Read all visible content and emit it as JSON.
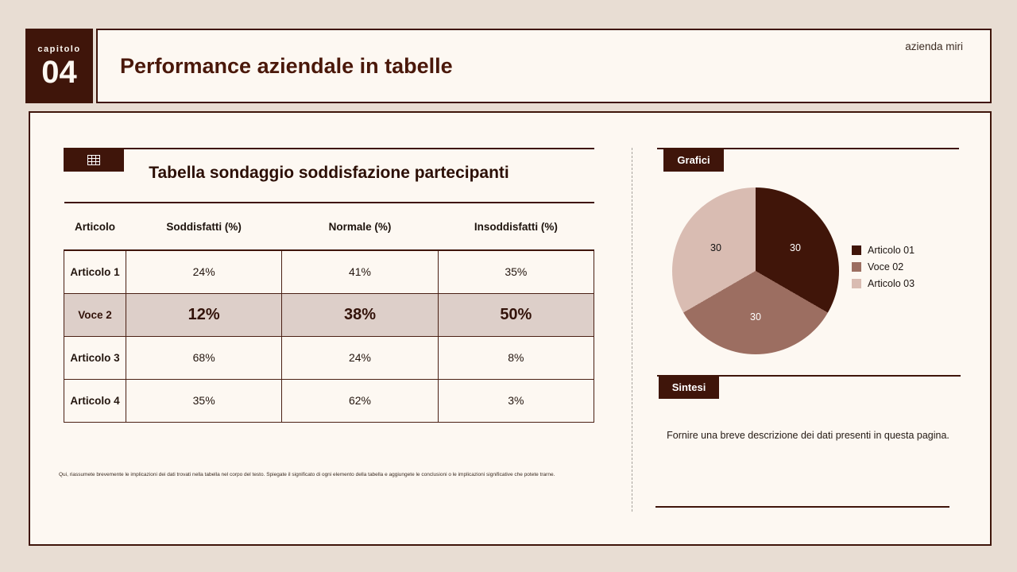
{
  "page": {
    "background": "#e8ddd3",
    "accent_dark": "#3f150a",
    "panel_bg": "#fdf8f2",
    "highlight_row_bg": "#ddcfc9"
  },
  "header": {
    "chapter_label": "capitolo",
    "chapter_number": "04",
    "title": "Performance aziendale in tabelle",
    "brand": "azienda miri"
  },
  "table_section": {
    "icon": "table-icon",
    "title": "Tabella sondaggio soddisfazione partecipanti",
    "columns": [
      "Articolo",
      "Soddisfatti (%)",
      "Normale (%)",
      "Insoddisfatti (%)"
    ],
    "rows": [
      {
        "label": "Articolo 1",
        "values": [
          "24%",
          "41%",
          "35%"
        ],
        "highlight": false
      },
      {
        "label": "Voce 2",
        "values": [
          "12%",
          "38%",
          "50%"
        ],
        "highlight": true
      },
      {
        "label": "Articolo 3",
        "values": [
          "68%",
          "24%",
          "8%"
        ],
        "highlight": false
      },
      {
        "label": "Articolo 4",
        "values": [
          "35%",
          "62%",
          "3%"
        ],
        "highlight": false
      }
    ],
    "footnote": "Qui, riassumete brevemente le implicazioni dei dati trovati nella tabella nel corpo del testo. Spiegate il significato di ogni elemento della tabella e aggiungete le conclusioni o le implicazioni significative che potete trarne."
  },
  "charts_section": {
    "label": "Grafici"
  },
  "chart_data": {
    "type": "pie",
    "labels": [
      "Articolo 01",
      "Voce 02",
      "Articolo 03"
    ],
    "values": [
      30,
      30,
      30
    ],
    "colors": [
      "#401509",
      "#9c6e61",
      "#d9bcb2"
    ],
    "data_labels": [
      "30",
      "30",
      "30"
    ],
    "legend_position": "right",
    "title": ""
  },
  "summary_section": {
    "label": "Sintesi",
    "text": "Fornire una breve descrizione dei dati presenti in questa pagina."
  }
}
